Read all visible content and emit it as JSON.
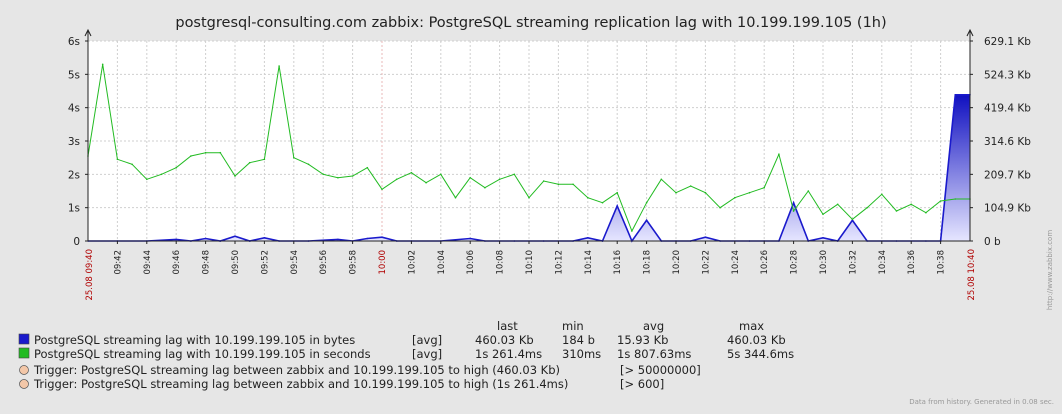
{
  "chart_data": {
    "type": "line",
    "title": "postgresql-consulting.com zabbix: PostgreSQL streaming replication lag with 10.199.199.105 (1h)",
    "left_axis": {
      "ticks": [
        "0",
        "1s",
        "2s",
        "3s",
        "4s",
        "5s",
        "6s"
      ],
      "ylim": [
        0,
        6
      ]
    },
    "right_axis": {
      "ticks": [
        "0 b",
        "104.9 Kb",
        "209.7 Kb",
        "314.6 Kb",
        "419.4 Kb",
        "524.3 Kb",
        "629.1 Kb"
      ],
      "ylim": [
        0,
        629.1
      ]
    },
    "x_ticks": [
      "09:42",
      "09:44",
      "09:46",
      "09:48",
      "09:50",
      "09:52",
      "09:54",
      "09:56",
      "09:58",
      "10:00",
      "10:02",
      "10:04",
      "10:06",
      "10:08",
      "10:10",
      "10:12",
      "10:14",
      "10:16",
      "10:18",
      "10:20",
      "10:22",
      "10:24",
      "10:26",
      "10:28",
      "10:30",
      "10:32",
      "10:34",
      "10:36",
      "10:38"
    ],
    "x_start_label": "25.08 09:40",
    "x_end_label": "25.08 10:40",
    "grid": true,
    "series": [
      {
        "name": "PostgreSQL streaming lag with 10.199.199.105 in bytes",
        "axis": "right",
        "color": "#1a1acc",
        "x": [
          "09:40",
          "09:42",
          "09:44",
          "09:46",
          "09:47",
          "09:48",
          "09:49",
          "09:50",
          "09:51",
          "09:52",
          "09:53",
          "09:55",
          "09:57",
          "09:58",
          "09:59",
          "10:00",
          "10:01",
          "10:02",
          "10:04",
          "10:06",
          "10:07",
          "10:09",
          "10:11",
          "10:13",
          "10:14",
          "10:15",
          "10:16",
          "10:17",
          "10:18",
          "10:19",
          "10:20",
          "10:21",
          "10:22",
          "10:23",
          "10:25",
          "10:26",
          "10:27",
          "10:28",
          "10:29",
          "10:30",
          "10:31",
          "10:32",
          "10:33",
          "10:35",
          "10:37",
          "10:38",
          "10:39",
          "10:40"
        ],
        "values": [
          0,
          0,
          0,
          5,
          0,
          8,
          0,
          15,
          0,
          10,
          0,
          0,
          5,
          0,
          8,
          12,
          0,
          0,
          0,
          8,
          0,
          0,
          0,
          0,
          10,
          0,
          110,
          0,
          65,
          0,
          0,
          0,
          12,
          0,
          0,
          0,
          0,
          120,
          0,
          10,
          0,
          65,
          0,
          0,
          0,
          0,
          460,
          460
        ]
      },
      {
        "name": "PostgreSQL streaming lag with 10.199.199.105 in seconds",
        "axis": "left",
        "color": "#22bb22",
        "x": [
          "09:40",
          "09:41",
          "09:42",
          "09:43",
          "09:44",
          "09:45",
          "09:46",
          "09:47",
          "09:48",
          "09:49",
          "09:50",
          "09:51",
          "09:52",
          "09:53",
          "09:54",
          "09:55",
          "09:56",
          "09:57",
          "09:58",
          "09:59",
          "10:00",
          "10:01",
          "10:02",
          "10:03",
          "10:04",
          "10:05",
          "10:06",
          "10:07",
          "10:08",
          "10:09",
          "10:10",
          "10:11",
          "10:12",
          "10:13",
          "10:14",
          "10:15",
          "10:16",
          "10:17",
          "10:18",
          "10:19",
          "10:20",
          "10:21",
          "10:22",
          "10:23",
          "10:24",
          "10:25",
          "10:26",
          "10:27",
          "10:28",
          "10:29",
          "10:30",
          "10:31",
          "10:32",
          "10:33",
          "10:34",
          "10:35",
          "10:36",
          "10:37",
          "10:38",
          "10:39",
          "10:40"
        ],
        "values": [
          2.55,
          5.3,
          2.45,
          2.3,
          1.85,
          2.0,
          2.2,
          2.55,
          2.65,
          2.65,
          1.95,
          2.35,
          2.45,
          5.25,
          2.5,
          2.3,
          2.0,
          1.9,
          1.95,
          2.2,
          1.55,
          1.85,
          2.05,
          1.75,
          2.0,
          1.3,
          1.9,
          1.6,
          1.85,
          2.0,
          1.3,
          1.8,
          1.7,
          1.7,
          1.3,
          1.15,
          1.45,
          0.3,
          1.15,
          1.85,
          1.45,
          1.65,
          1.45,
          1.0,
          1.3,
          1.45,
          1.6,
          2.6,
          0.9,
          1.5,
          0.8,
          1.1,
          0.65,
          1.0,
          1.4,
          0.9,
          1.1,
          0.85,
          1.2,
          1.26,
          1.26
        ]
      }
    ],
    "legend": {
      "headers": [
        "last",
        "min",
        "avg",
        "max"
      ],
      "rows": [
        {
          "label": "PostgreSQL streaming lag with 10.199.199.105 in bytes",
          "func": "[avg]",
          "last": "460.03 Kb",
          "min": "184 b",
          "avg": "15.93 Kb",
          "max": "460.03 Kb",
          "color": "#1a1acc"
        },
        {
          "label": "PostgreSQL streaming lag with 10.199.199.105 in seconds",
          "func": "[avg]",
          "last": "1s 261.4ms",
          "min": "310ms",
          "avg": "1s 807.63ms",
          "max": "5s 344.6ms",
          "color": "#22bb22"
        }
      ],
      "triggers": [
        {
          "label": "Trigger: PostgreSQL streaming lag between zabbix and 10.199.199.105 to high (460.03 Kb)",
          "cond": "[> 50000000]"
        },
        {
          "label": "Trigger: PostgreSQL streaming lag between zabbix and 10.199.199.105 to high (1s 261.4ms)",
          "cond": "[> 600]"
        }
      ]
    },
    "footer": "Data from history. Generated in 0.08 sec.",
    "watermark": "http://www.zabbix.com"
  }
}
